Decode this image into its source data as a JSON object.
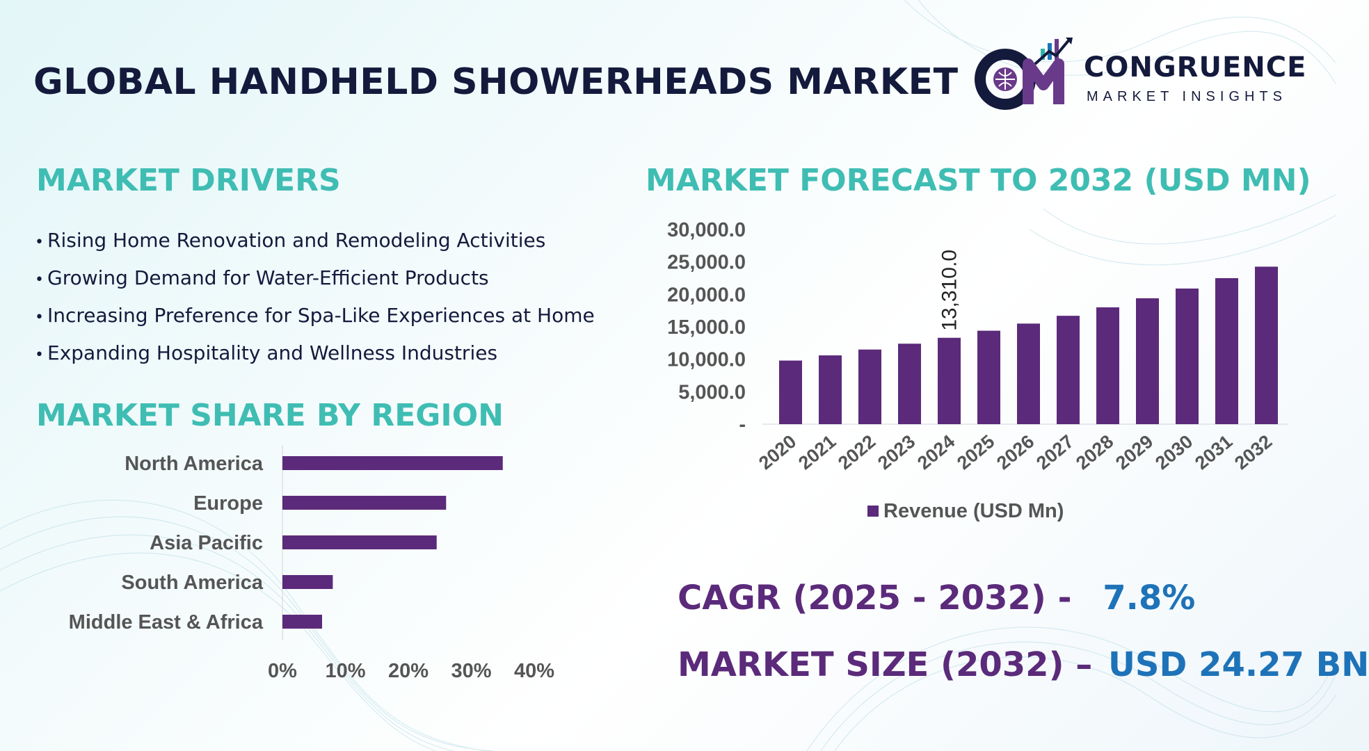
{
  "title": "GLOBAL HANDHELD SHOWERHEADS MARKET",
  "logo": {
    "name": "CONGRUENCE",
    "tagline": "MARKET INSIGHTS"
  },
  "market_drivers": {
    "heading": "MARKET DRIVERS",
    "items": [
      "Rising Home Renovation and Remodeling Activities",
      "Growing Demand for Water-Efficient Products",
      "Increasing Preference for Spa-Like Experiences at Home",
      "Expanding Hospitality and Wellness Industries"
    ]
  },
  "region_section": {
    "heading": "MARKET SHARE BY REGION"
  },
  "forecast_section": {
    "heading": "MARKET FORECAST TO 2032 (USD MN)"
  },
  "stats": {
    "cagr_label": "CAGR (2025 - 2032) -",
    "cagr_value": "7.8%",
    "size_label": "MARKET SIZE (2032) –",
    "size_value": "USD 24.27 BN"
  },
  "colors": {
    "bar": "#5b2a7a",
    "heading": "#3fbdb3",
    "title": "#141a3c",
    "stat_value": "#1e73b8"
  },
  "chart_data": [
    {
      "type": "bar",
      "orientation": "horizontal",
      "categories": [
        "North America",
        "Europe",
        "Asia Pacific",
        "South America",
        "Middle East & Africa"
      ],
      "values": [
        35,
        26,
        24.5,
        8,
        6.3
      ],
      "value_unit": "%",
      "xlim": [
        0,
        40
      ],
      "xticks": [
        "0%",
        "10%",
        "20%",
        "30%",
        "40%"
      ],
      "grid": false
    },
    {
      "type": "bar",
      "categories": [
        "2020",
        "2021",
        "2022",
        "2023",
        "2024",
        "2025",
        "2026",
        "2027",
        "2028",
        "2029",
        "2030",
        "2031",
        "2032"
      ],
      "series": [
        {
          "name": "Revenue (USD Mn)",
          "values": [
            9800,
            10600,
            11500,
            12400,
            13310,
            14400,
            15500,
            16700,
            18000,
            19400,
            20900,
            22500,
            24270
          ]
        }
      ],
      "ylim": [
        0,
        30000
      ],
      "yticks": [
        "-",
        "5,000.0",
        "10,000.0",
        "15,000.0",
        "20,000.0",
        "25,000.0",
        "30,000.0"
      ],
      "data_labels": [
        {
          "category": "2024",
          "text": "13,310.0"
        }
      ],
      "legend": "bottom",
      "grid": false
    }
  ]
}
